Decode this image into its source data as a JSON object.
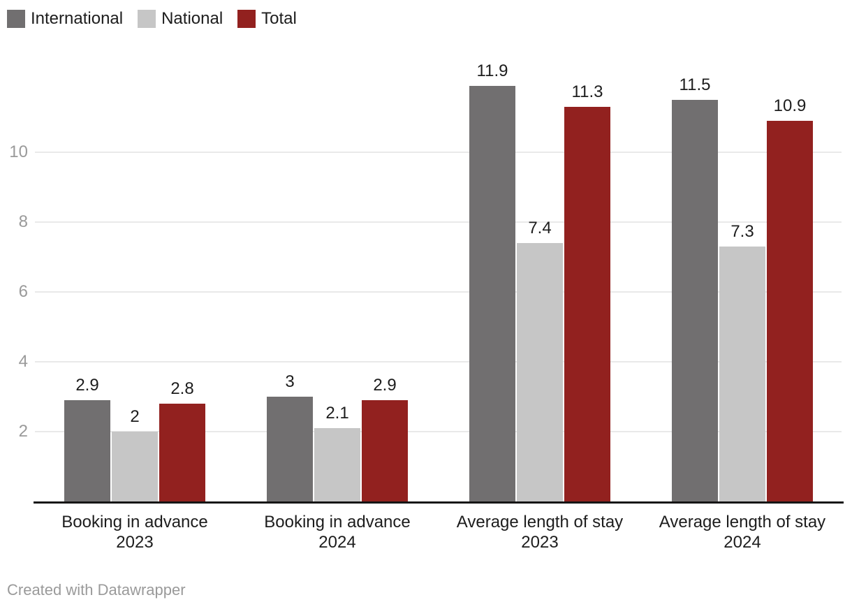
{
  "chart_data": {
    "type": "bar",
    "categories": [
      {
        "line1": "Booking in advance",
        "line2": "2023"
      },
      {
        "line1": "Booking in advance",
        "line2": "2024"
      },
      {
        "line1": "Average length of stay",
        "line2": "2023"
      },
      {
        "line1": "Average length of stay",
        "line2": "2024"
      }
    ],
    "series": [
      {
        "name": "International",
        "color": "#716F70",
        "values": [
          2.9,
          3,
          11.9,
          11.5
        ]
      },
      {
        "name": "National",
        "color": "#C6C6C6",
        "values": [
          2,
          2.1,
          7.4,
          7.3
        ]
      },
      {
        "name": "Total",
        "color": "#92211F",
        "values": [
          2.8,
          2.9,
          11.3,
          10.9
        ]
      }
    ],
    "y_ticks": [
      2,
      4,
      6,
      8,
      10
    ],
    "ylim": [
      0,
      12
    ],
    "grid": true,
    "legend_position": "top-left",
    "title": "",
    "xlabel": "",
    "ylabel": ""
  },
  "colors": {
    "grid": "#e9e9e9",
    "axis": "#161616",
    "tick_text": "#9a9a9a",
    "label_text": "#1d1d1d",
    "credit_text": "#9a9a9a",
    "background": "#ffffff"
  },
  "footer": {
    "credit": "Created with Datawrapper"
  }
}
